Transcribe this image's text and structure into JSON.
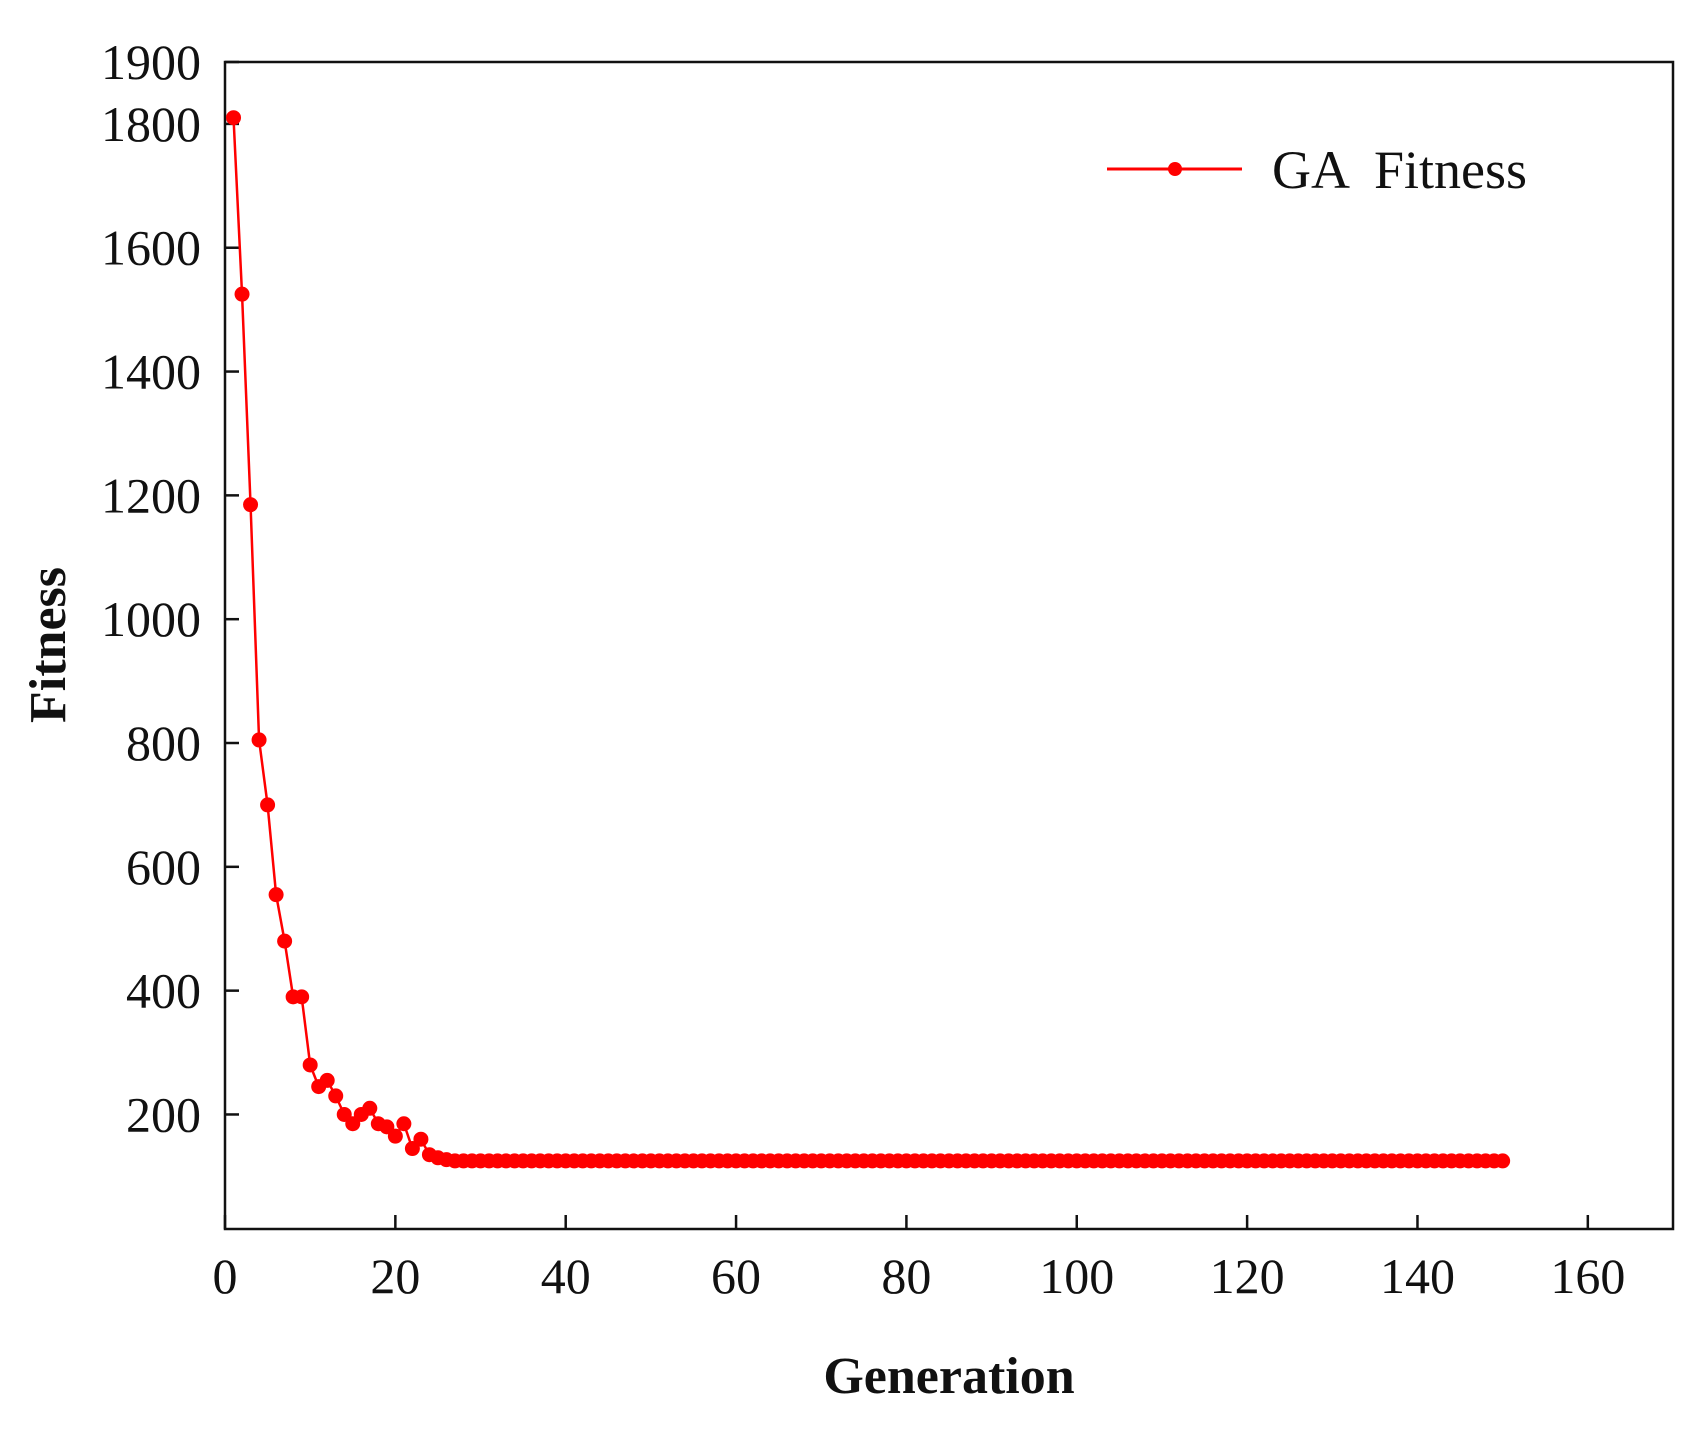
{
  "chart_data": {
    "type": "line",
    "title": "",
    "xlabel": "Generation",
    "ylabel": "Fitness",
    "xlim": [
      0,
      170
    ],
    "ylim": [
      15,
      1900
    ],
    "x_ticks": [
      "0",
      "20",
      "40",
      "60",
      "80",
      "100",
      "120",
      "140",
      "160"
    ],
    "y_ticks": [
      "200",
      "400",
      "600",
      "800",
      "1000",
      "1200",
      "1400",
      "1600",
      "1800",
      "1900"
    ],
    "grid": false,
    "legend_position": "top-right",
    "colors": {
      "series": "#ff0000",
      "axis": "#111111"
    },
    "series": [
      {
        "name": "GA  Fitness",
        "marker": "circle",
        "x": [
          1,
          2,
          3,
          4,
          5,
          6,
          7,
          8,
          9,
          10,
          11,
          12,
          13,
          14,
          15,
          16,
          17,
          18,
          19,
          20,
          21,
          22,
          23,
          24,
          25,
          26,
          27,
          28,
          29,
          30,
          31,
          32,
          33,
          34,
          35,
          36,
          37,
          38,
          39,
          40,
          41,
          42,
          43,
          44,
          45,
          46,
          47,
          48,
          49,
          50,
          51,
          52,
          53,
          54,
          55,
          56,
          57,
          58,
          59,
          60,
          61,
          62,
          63,
          64,
          65,
          66,
          67,
          68,
          69,
          70,
          71,
          72,
          73,
          74,
          75,
          76,
          77,
          78,
          79,
          80,
          81,
          82,
          83,
          84,
          85,
          86,
          87,
          88,
          89,
          90,
          91,
          92,
          93,
          94,
          95,
          96,
          97,
          98,
          99,
          100,
          101,
          102,
          103,
          104,
          105,
          106,
          107,
          108,
          109,
          110,
          111,
          112,
          113,
          114,
          115,
          116,
          117,
          118,
          119,
          120,
          121,
          122,
          123,
          124,
          125,
          126,
          127,
          128,
          129,
          130,
          131,
          132,
          133,
          134,
          135,
          136,
          137,
          138,
          139,
          140,
          141,
          142,
          143,
          144,
          145,
          146,
          147,
          148,
          149,
          150
        ],
        "y": [
          1810,
          1525,
          1185,
          805,
          700,
          555,
          480,
          390,
          390,
          280,
          245,
          255,
          230,
          200,
          185,
          200,
          210,
          185,
          180,
          165,
          185,
          145,
          160,
          135,
          130,
          127,
          125,
          125,
          125,
          125,
          125,
          125,
          125,
          125,
          125,
          125,
          125,
          125,
          125,
          125,
          125,
          125,
          125,
          125,
          125,
          125,
          125,
          125,
          125,
          125,
          125,
          125,
          125,
          125,
          125,
          125,
          125,
          125,
          125,
          125,
          125,
          125,
          125,
          125,
          125,
          125,
          125,
          125,
          125,
          125,
          125,
          125,
          125,
          125,
          125,
          125,
          125,
          125,
          125,
          125,
          125,
          125,
          125,
          125,
          125,
          125,
          125,
          125,
          125,
          125,
          125,
          125,
          125,
          125,
          125,
          125,
          125,
          125,
          125,
          125,
          125,
          125,
          125,
          125,
          125,
          125,
          125,
          125,
          125,
          125,
          125,
          125,
          125,
          125,
          125,
          125,
          125,
          125,
          125,
          125,
          125,
          125,
          125,
          125,
          125,
          125,
          125,
          125,
          125,
          125,
          125,
          125,
          125,
          125,
          125,
          125,
          125,
          125,
          125,
          125,
          125,
          125,
          125,
          125,
          125,
          125,
          125,
          125,
          125,
          125
        ]
      }
    ]
  }
}
